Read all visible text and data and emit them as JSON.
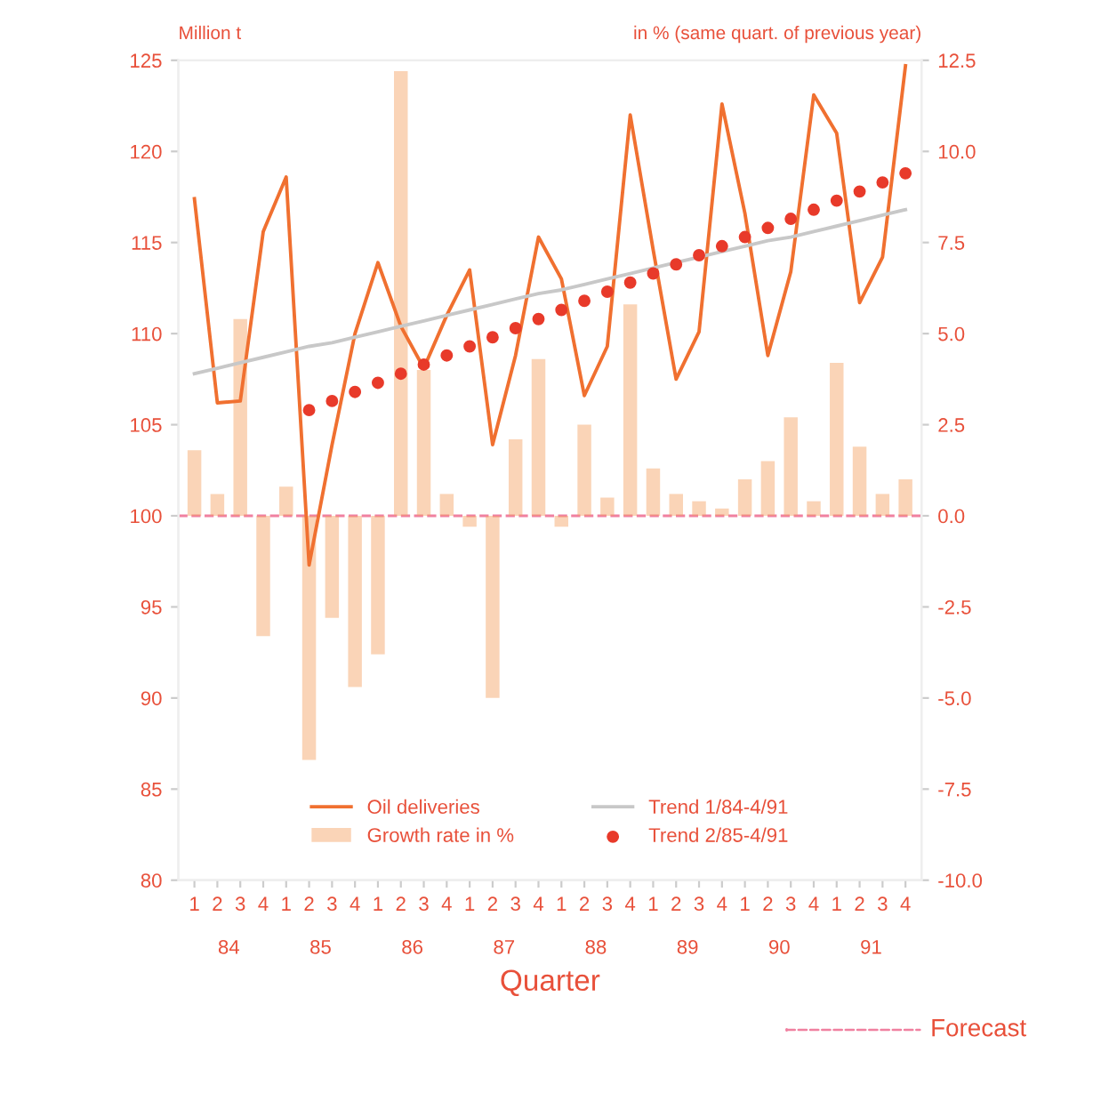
{
  "chart_data": {
    "type": "line",
    "ylabel": "Million t",
    "y2label": "in % (same quart. of previous year)",
    "xlabel": "Quarter",
    "categories": [
      "1",
      "2",
      "3",
      "4",
      "1",
      "2",
      "3",
      "4",
      "1",
      "2",
      "3",
      "4",
      "1",
      "2",
      "3",
      "4",
      "1",
      "2",
      "3",
      "4",
      "1",
      "2",
      "3",
      "4",
      "1",
      "2",
      "3",
      "4",
      "1",
      "2",
      "3",
      "4"
    ],
    "annotations": [
      "84",
      "85",
      "86",
      "87",
      "88",
      "89",
      "90",
      "91",
      "Forecast"
    ],
    "series": [
      {
        "name": "Oil deliveries",
        "color": "#f07030",
        "values": [
          117.4,
          106.2,
          106.3,
          115.6,
          118.6,
          97.3,
          103.9,
          110.0,
          113.9,
          110.4,
          108.1,
          111.0,
          113.5,
          103.9,
          108.8,
          115.3,
          113.0,
          106.6,
          109.3,
          122.0,
          114.6,
          107.5,
          110.1,
          122.6,
          116.6,
          108.8,
          113.4,
          123.1,
          121.0,
          111.7,
          114.2,
          124.7
        ]
      },
      {
        "name": "Growth rate in %",
        "type": "bar",
        "axis": "y2",
        "color": "#f4a060",
        "values": [
          1.8,
          0.6,
          5.4,
          -3.3,
          0.8,
          -6.7,
          -2.8,
          -4.7,
          -3.8,
          12.2,
          4.0,
          0.6,
          -0.3,
          -5.0,
          2.1,
          4.3,
          -0.3,
          2.5,
          0.5,
          5.8,
          1.3,
          0.6,
          0.4,
          0.2,
          1.0,
          1.5,
          2.7,
          0.4,
          4.2,
          1.9,
          0.6,
          1.0
        ]
      },
      {
        "name": "Trend 1/84-4/91",
        "type": "line",
        "color": "#c8c8c8",
        "values": [
          107.8,
          108.1,
          108.4,
          108.7,
          109.0,
          109.3,
          109.5,
          109.8,
          110.1,
          110.4,
          110.7,
          111.0,
          111.3,
          111.6,
          111.9,
          112.2,
          112.4,
          112.7,
          113.0,
          113.3,
          113.6,
          113.9,
          114.2,
          114.5,
          114.8,
          115.1,
          115.3,
          115.6,
          115.9,
          116.2,
          116.5,
          116.8
        ]
      },
      {
        "name": "Trend 2/85-4/91",
        "type": "scatter",
        "color": "#e83a2a",
        "marker": "circle",
        "values": [
          null,
          null,
          null,
          null,
          null,
          105.8,
          106.3,
          106.8,
          107.3,
          107.8,
          108.3,
          108.8,
          109.3,
          109.8,
          110.3,
          110.8,
          111.3,
          111.8,
          112.3,
          112.8,
          113.3,
          113.8,
          114.3,
          114.8,
          115.3,
          115.8,
          116.3,
          116.8,
          117.3,
          117.8,
          118.3,
          118.8
        ]
      }
    ],
    "ylim": [
      80,
      125
    ],
    "yticks": [
      80,
      85,
      90,
      95,
      100,
      105,
      110,
      115,
      120,
      125
    ],
    "y2lim": [
      -10,
      12.5
    ],
    "y2ticks": [
      {
        "value": -10,
        "label": "-10.0"
      },
      {
        "value": -7.5,
        "label": "-7.5"
      },
      {
        "value": -5,
        "label": "-5.0"
      },
      {
        "value": -2.5,
        "label": "-2.5"
      },
      {
        "value": 0,
        "label": "0.0"
      },
      {
        "value": 2.5,
        "label": "2.5"
      },
      {
        "value": 5,
        "label": "5.0"
      },
      {
        "value": 7.5,
        "label": "7.5"
      },
      {
        "value": 10,
        "label": "10.0"
      },
      {
        "value": 12.5,
        "label": "12.5"
      }
    ],
    "ref_lines": [
      {
        "axis": "y2",
        "value": 0,
        "color": "#f080a0",
        "line_style": "dashed"
      }
    ],
    "legend": "bottom"
  }
}
